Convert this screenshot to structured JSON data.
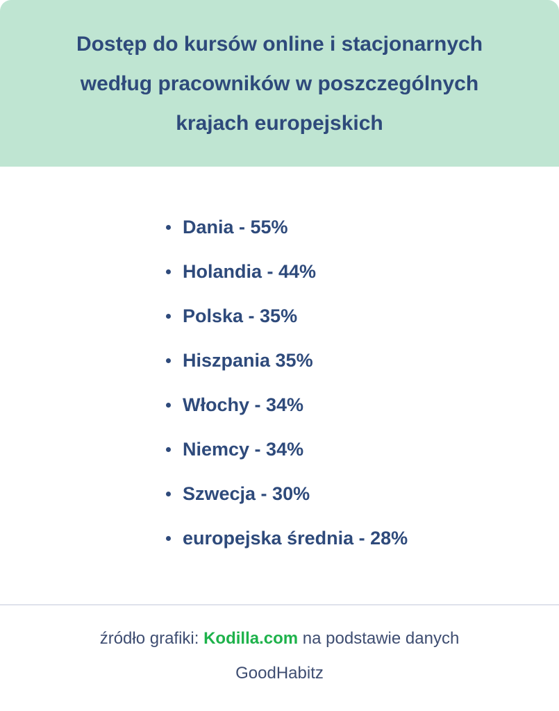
{
  "colors": {
    "header_bg": "#BFE5D2",
    "title_text": "#2E4A7B",
    "list_text": "#2E4A7B",
    "footer_text": "#3E4D71",
    "brand_green": "#1EB24B",
    "divider": "#DFE2EB",
    "card_bg": "#FFFFFF"
  },
  "header": {
    "title_lines": [
      "Dostęp do kursów online i stacjonarnych",
      "według pracowników w poszczególnych",
      "krajach europejskich"
    ]
  },
  "list": {
    "items": [
      "Dania - 55%",
      "Holandia - 44%",
      "Polska - 35%",
      "Hiszpania 35%",
      "Włochy - 34%",
      "Niemcy - 34%",
      "Szwecja - 30%",
      "europejska średnia - 28%"
    ]
  },
  "footer": {
    "prefix": "źródło grafiki: ",
    "brand": "Kodilla.com",
    "suffix": " na podstawie danych GoodHabitz"
  },
  "chart_data": {
    "type": "table",
    "title": "Dostęp do kursów online i stacjonarnych według pracowników w poszczególnych krajach europejskich",
    "categories": [
      "Dania",
      "Holandia",
      "Polska",
      "Hiszpania",
      "Włochy",
      "Niemcy",
      "Szwecja",
      "europejska średnia"
    ],
    "values": [
      55,
      44,
      35,
      35,
      34,
      34,
      30,
      28
    ],
    "unit": "%",
    "source": "źródło grafiki: Kodilla.com na podstawie danych GoodHabitz"
  }
}
